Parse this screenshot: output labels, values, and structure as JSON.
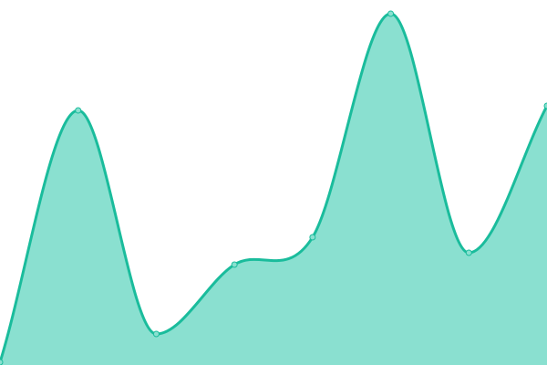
{
  "chart_data": {
    "type": "area",
    "x": [
      0,
      1,
      2,
      3,
      4,
      5,
      6,
      7
    ],
    "values": [
      3,
      279,
      34,
      110,
      140,
      385,
      123,
      284
    ],
    "ylim": [
      0,
      400
    ],
    "grid": false,
    "legend": "none",
    "curve": "smooth",
    "colors": {
      "line": "#1abc9c",
      "fill": "#8ae0d0",
      "point": "#8ae0d0"
    }
  }
}
